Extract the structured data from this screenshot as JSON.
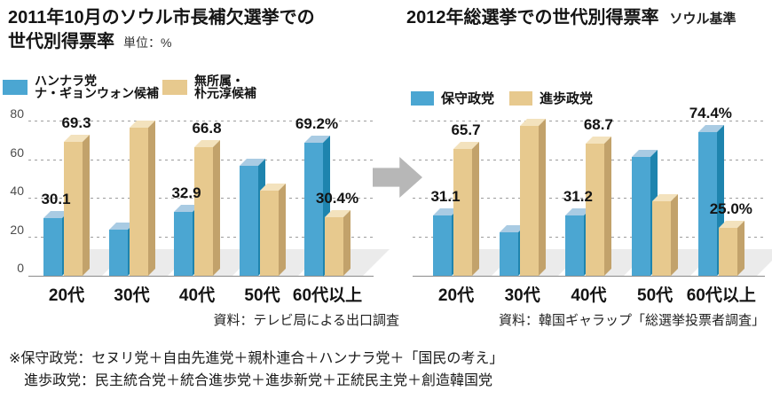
{
  "left": {
    "title_line1": "2011年10月のソウル市長補欠選挙での",
    "title_line2": "世代別得票率",
    "unit": "単位：%",
    "legend": {
      "item1": {
        "line1": "ハンナラ党",
        "line2": "ナ・ギョンウォン候補",
        "color": "#4BA6D2"
      },
      "item2": {
        "line1": "無所属・",
        "line2": "朴元淳候補",
        "color": "#E7C98E"
      }
    },
    "source": "資料：テレビ局による出口調査"
  },
  "right": {
    "title": "2012年総選挙での世代別得票率",
    "title_note": "ソウル基準",
    "legend": {
      "item1": {
        "label": "保守政党",
        "color": "#4BA6D2"
      },
      "item2": {
        "label": "進歩政党",
        "color": "#E7C98E"
      }
    },
    "source": "資料：韓国ギャラップ「総選挙投票者調査」"
  },
  "footnote": {
    "line1": "※保守政党：セヌリ党＋自由先進党＋親朴連合＋ハンナラ党＋「国民の考え」",
    "line2": "進歩政党：民主統合党＋統合進歩党＋進歩新党＋正統民主党＋創造韓国党"
  },
  "chart_data": [
    {
      "type": "bar",
      "title": "2011年10月のソウル市長補欠選挙での世代別得票率",
      "unit": "%",
      "categories": [
        "20代",
        "30代",
        "40代",
        "50代",
        "60代以上"
      ],
      "series": [
        {
          "name": "ハンナラ党 ナ・ギョンウォン候補",
          "color": {
            "face": "#4BA6D2",
            "top": "#A9CBE3",
            "side": "#1E84AE"
          },
          "values": [
            30.1,
            24,
            32.9,
            57,
            69.2
          ],
          "data_labels": [
            "30.1",
            null,
            "32.9",
            null,
            "69.2%"
          ]
        },
        {
          "name": "無所属・朴元淳候補",
          "color": {
            "face": "#E7C98E",
            "top": "#F3E2BD",
            "side": "#C2A26B"
          },
          "values": [
            69.3,
            77,
            66.8,
            44,
            30.4
          ],
          "data_labels": [
            "69.3",
            null,
            "66.8",
            null,
            "30.4%"
          ]
        }
      ],
      "ylim": [
        0,
        80
      ],
      "yticks": [
        0,
        20,
        40,
        60,
        80
      ],
      "grid": "horizontal-dotted",
      "legend_position": "top-left",
      "source": "資料：テレビ局による出口調査"
    },
    {
      "type": "bar",
      "title": "2012年総選挙での世代別得票率（ソウル基準）",
      "unit": "%",
      "categories": [
        "20代",
        "30代",
        "40代",
        "50代",
        "60代以上"
      ],
      "series": [
        {
          "name": "保守政党",
          "color": {
            "face": "#4BA6D2",
            "top": "#A9CBE3",
            "side": "#1E84AE"
          },
          "values": [
            31.1,
            22.5,
            31.2,
            61.5,
            74.4
          ],
          "data_labels": [
            "31.1",
            null,
            "31.2",
            null,
            "74.4%"
          ]
        },
        {
          "name": "進歩政党",
          "color": {
            "face": "#E7C98E",
            "top": "#F3E2BD",
            "side": "#C2A26B"
          },
          "values": [
            65.7,
            77.5,
            68.7,
            38.5,
            25.0
          ],
          "data_labels": [
            "65.7",
            null,
            "68.7",
            null,
            "25.0%"
          ]
        }
      ],
      "ylim": [
        0,
        80
      ],
      "yticks": [
        0,
        20,
        40,
        60,
        80
      ],
      "grid": "horizontal-dotted",
      "legend_position": "top-left",
      "source": "資料：韓国ギャラップ「総選挙投票者調査」"
    }
  ]
}
